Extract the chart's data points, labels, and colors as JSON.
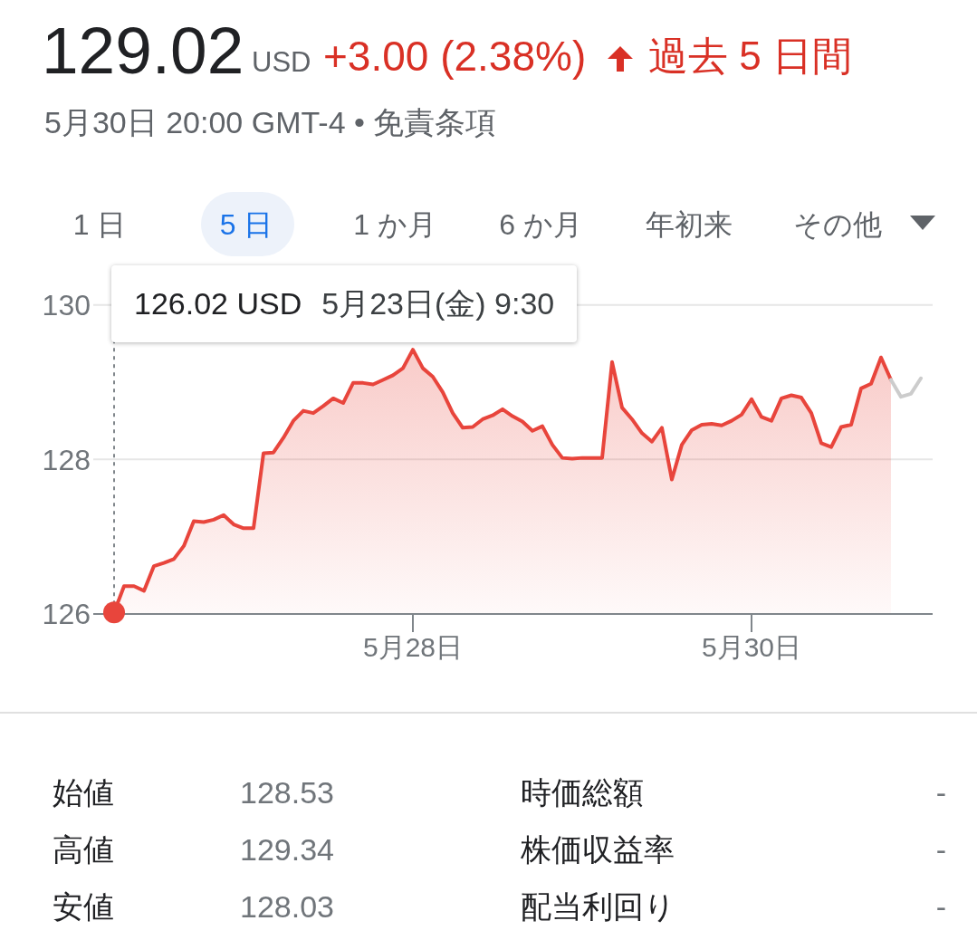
{
  "chart_data": {
    "type": "area",
    "title": "129.02",
    "subtitle": "5月30日 20:00 GMT-4 • 免責条項",
    "annotations": [
      "USD",
      "+3.00 (2.38%)",
      "過去 5 日間",
      "1 日",
      "5 日",
      "1 か月",
      "6 か月",
      "年初来",
      "その他",
      "始値",
      "128.53",
      "時価総額",
      "-",
      "高値",
      "129.34",
      "株価収益率",
      "-",
      "安値",
      "128.03",
      "配当利回り",
      "-",
      "126.02 USD",
      "5月23日(金) 9:30"
    ],
    "categories": [
      null,
      null,
      null,
      null,
      null,
      null,
      null,
      null,
      null,
      null,
      null,
      null,
      null,
      null,
      null,
      null,
      null,
      null,
      null,
      null,
      null,
      null,
      null,
      null,
      null,
      null,
      null,
      null,
      null,
      null,
      "5月28日",
      null,
      null,
      null,
      null,
      null,
      null,
      null,
      null,
      null,
      null,
      null,
      null,
      null,
      null,
      null,
      null,
      null,
      null,
      null,
      null,
      null,
      null,
      null,
      null,
      null,
      null,
      null,
      null,
      null,
      null,
      null,
      null,
      null,
      "5月30日",
      null,
      null,
      null,
      null,
      null,
      null,
      null,
      null,
      null,
      null,
      null,
      null,
      null,
      null,
      null,
      null,
      null
    ],
    "series": [
      {
        "color": "#e8453c",
        "values": [
          126.02,
          126.36,
          126.36,
          126.3,
          126.62,
          126.66,
          126.71,
          126.88,
          127.2,
          127.19,
          127.22,
          127.28,
          127.16,
          127.11,
          127.11,
          128.08,
          128.09,
          128.28,
          128.5,
          128.63,
          128.6,
          128.69,
          128.79,
          128.73,
          128.99,
          128.99,
          128.97,
          129.03,
          129.09,
          129.18,
          129.42,
          129.18,
          129.07,
          128.87,
          128.6,
          128.41,
          128.42,
          128.52,
          128.57,
          128.65,
          128.56,
          128.49,
          128.37,
          128.43,
          128.19,
          128.02,
          128.01,
          128.02,
          128.02,
          128.02,
          129.26,
          128.67,
          128.52,
          128.34,
          128.23,
          128.41,
          127.74,
          128.19,
          128.38,
          128.45,
          128.46,
          128.44,
          128.5,
          128.58,
          128.78,
          128.55,
          128.5,
          128.79,
          128.83,
          128.8,
          128.6,
          128.21,
          128.16,
          128.42,
          128.45,
          128.92,
          128.98,
          129.32,
          129.03,
          null,
          null,
          null
        ]
      },
      {
        "type": "line",
        "color": "#cccccc",
        "values": [
          null,
          null,
          null,
          null,
          null,
          null,
          null,
          null,
          null,
          null,
          null,
          null,
          null,
          null,
          null,
          null,
          null,
          null,
          null,
          null,
          null,
          null,
          null,
          null,
          null,
          null,
          null,
          null,
          null,
          null,
          null,
          null,
          null,
          null,
          null,
          null,
          null,
          null,
          null,
          null,
          null,
          null,
          null,
          null,
          null,
          null,
          null,
          null,
          null,
          null,
          null,
          null,
          null,
          null,
          null,
          null,
          null,
          null,
          null,
          null,
          null,
          null,
          null,
          null,
          null,
          null,
          null,
          null,
          null,
          null,
          null,
          null,
          null,
          null,
          null,
          null,
          null,
          null,
          129.03,
          128.81,
          128.85,
          129.05
        ]
      }
    ],
    "ylim": [
      126,
      130.5
    ],
    "yticks": [
      126,
      128,
      130
    ],
    "grid": "y",
    "marker": "none"
  }
}
